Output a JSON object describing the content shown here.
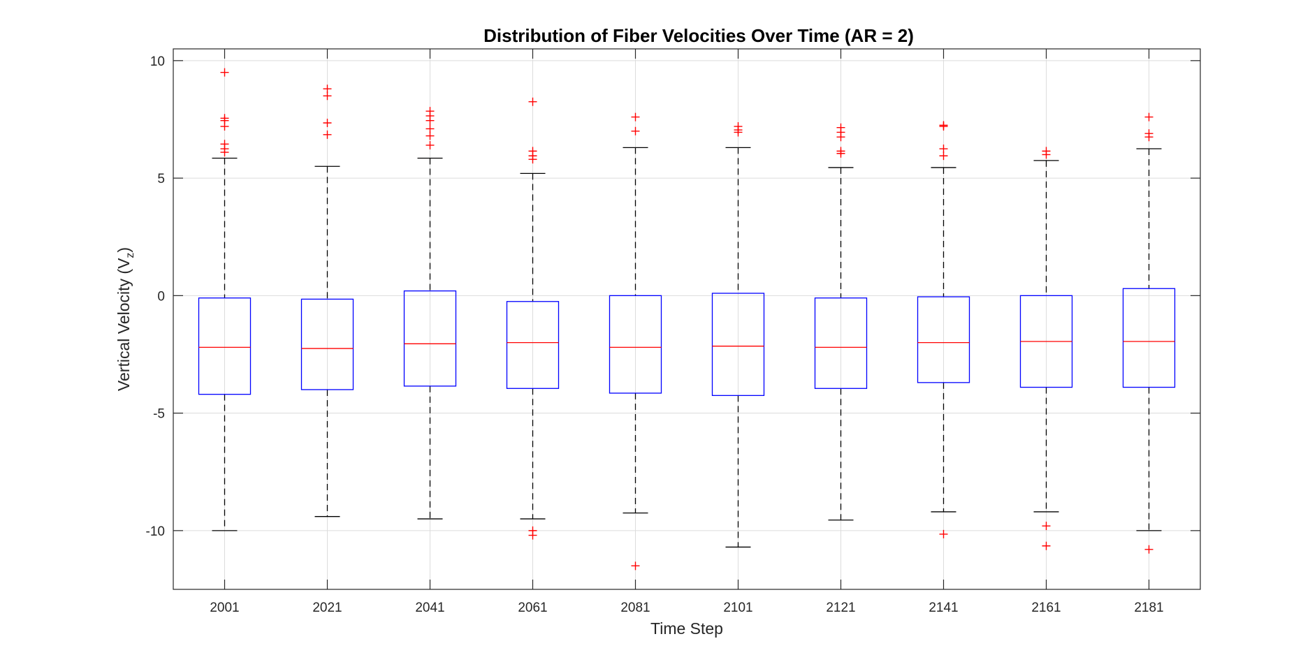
{
  "chart_data": {
    "type": "boxplot",
    "title": "Distribution of Fiber Velocities Over Time (AR = 2)",
    "xlabel": "Time Step",
    "ylabel": "Vertical Velocity (V",
    "ylabel_subscript": "z",
    "ylabel_suffix": ")",
    "ylim": [
      -12.5,
      10.5
    ],
    "yticks": [
      10,
      5,
      0,
      -5,
      -10
    ],
    "ytick_labels": [
      "10",
      "5",
      "0",
      "-5",
      "-10"
    ],
    "grid": true,
    "categories": [
      "2001",
      "2021",
      "2041",
      "2061",
      "2081",
      "2101",
      "2121",
      "2141",
      "2161",
      "2181"
    ],
    "boxes": [
      {
        "whisker_low": -10.0,
        "q1": -4.2,
        "median": -2.2,
        "q3": -0.1,
        "whisker_high": 5.85,
        "outliers": [
          9.5,
          7.55,
          7.45,
          7.2,
          6.45,
          6.25,
          6.1
        ]
      },
      {
        "whisker_low": -9.4,
        "q1": -4.0,
        "median": -2.25,
        "q3": -0.15,
        "whisker_high": 5.5,
        "outliers": [
          8.8,
          8.5,
          7.35,
          6.85
        ]
      },
      {
        "whisker_low": -9.5,
        "q1": -3.85,
        "median": -2.05,
        "q3": 0.2,
        "whisker_high": 5.85,
        "outliers": [
          7.85,
          7.65,
          7.45,
          7.1,
          6.8,
          6.4
        ]
      },
      {
        "whisker_low": -9.5,
        "q1": -3.95,
        "median": -2.0,
        "q3": -0.25,
        "whisker_high": 5.2,
        "outliers": [
          8.25,
          6.15,
          5.95,
          5.8,
          -10.0,
          -10.2
        ]
      },
      {
        "whisker_low": -9.25,
        "q1": -4.15,
        "median": -2.2,
        "q3": 0.0,
        "whisker_high": 6.3,
        "outliers": [
          7.6,
          7.0,
          -11.5
        ]
      },
      {
        "whisker_low": -10.7,
        "q1": -4.25,
        "median": -2.15,
        "q3": 0.1,
        "whisker_high": 6.3,
        "outliers": [
          7.2,
          7.05,
          6.95
        ]
      },
      {
        "whisker_low": -9.55,
        "q1": -3.95,
        "median": -2.2,
        "q3": -0.1,
        "whisker_high": 5.45,
        "outliers": [
          7.15,
          6.95,
          6.75,
          6.15,
          6.05
        ]
      },
      {
        "whisker_low": -9.2,
        "q1": -3.7,
        "median": -2.0,
        "q3": -0.05,
        "whisker_high": 5.45,
        "outliers": [
          7.25,
          7.2,
          6.25,
          5.95,
          -10.15
        ]
      },
      {
        "whisker_low": -9.2,
        "q1": -3.9,
        "median": -1.95,
        "q3": 0.0,
        "whisker_high": 5.75,
        "outliers": [
          6.15,
          6.0,
          -9.8,
          -10.65
        ]
      },
      {
        "whisker_low": -10.0,
        "q1": -3.9,
        "median": -1.95,
        "q3": 0.3,
        "whisker_high": 6.25,
        "outliers": [
          7.6,
          6.9,
          6.75,
          -10.8
        ]
      }
    ],
    "colors": {
      "box": "#0000ff",
      "median": "#ff0000",
      "outlier": "#ff0000",
      "whisker": "#000000",
      "grid": "#dcdcdc",
      "axes": "#262626"
    }
  }
}
